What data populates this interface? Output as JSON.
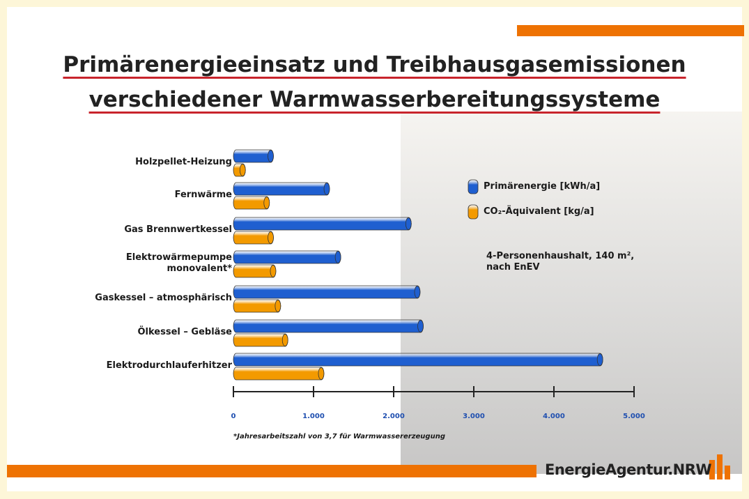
{
  "chart_data": {
    "type": "bar",
    "orientation": "horizontal",
    "title": "Primärenergieeinsatz und Treibhausgasemissionen\nverschiedener Warmwasserbereitungssysteme",
    "categories": [
      "Holzpellet-Heizung",
      "Fernwärme",
      "Gas Brennwertkessel",
      "Elektrowärmepumpe\nmonovalent*",
      "Gaskessel – atmosphärisch",
      "Ölkessel – Gebläse",
      "Elektrodurchlauferhitzer"
    ],
    "series": [
      {
        "name": "Primärenergie [kWh/a]",
        "color": "#1f5fd0",
        "values": [
          500,
          1200,
          2220,
          1340,
          2330,
          2370,
          4610
        ]
      },
      {
        "name": "CO₂-Äquivalent [kg/a]",
        "color": "#f39a00",
        "values": [
          150,
          450,
          500,
          530,
          590,
          680,
          1130
        ]
      }
    ],
    "xlim": [
      0,
      5000
    ],
    "xticks": [
      0,
      {
        "value": 1000,
        "label": "1.000"
      },
      {
        "value": 2000,
        "label": "2.000"
      },
      {
        "value": 3000,
        "label": "3.000"
      },
      {
        "value": 4000,
        "label": "4.000"
      },
      {
        "value": 5000,
        "label": "5.000"
      }
    ],
    "legend": "right",
    "annotations": [
      "4-Personenhaushalt, 140 m²,\nnach EnEV",
      "*Jahresarbeitszahl von 3,7 für Warmwassererzeugung"
    ]
  },
  "branding": {
    "logo": "EnergieAgentur.NRW"
  }
}
